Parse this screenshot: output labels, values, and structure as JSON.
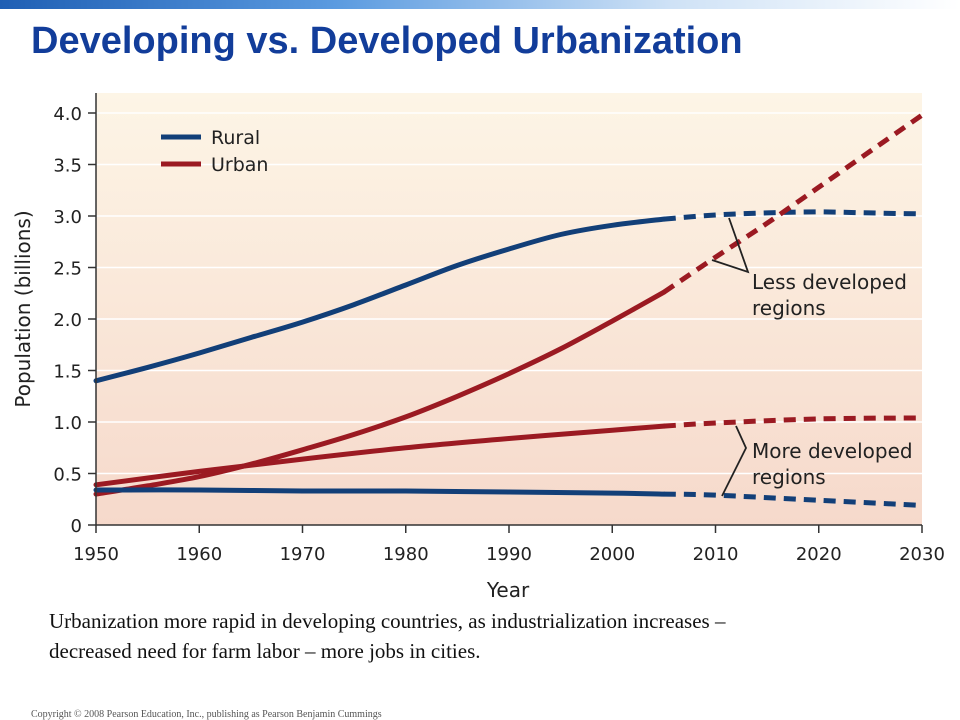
{
  "slide": {
    "title": "Developing vs. Developed Urbanization",
    "caption_line1": "Urbanization more rapid in developing countries, as industrialization increases –",
    "caption_line2": "decreased need for farm labor – more jobs in cities.",
    "copyright": "Copyright © 2008 Pearson Education, Inc., publishing as Pearson Benjamin Cummings"
  },
  "chart_data": {
    "type": "line",
    "xlabel": "Year",
    "ylabel": "Population (billions)",
    "xlim": [
      1950,
      2030
    ],
    "ylim": [
      0,
      4.0
    ],
    "x_ticks": [
      1950,
      1960,
      1970,
      1980,
      1990,
      2000,
      2010,
      2020,
      2030
    ],
    "y_ticks": [
      "0",
      "0.5",
      "1.0",
      "1.5",
      "2.0",
      "2.5",
      "3.0",
      "3.5",
      "4.0"
    ],
    "projection_start": 2005,
    "legend": [
      {
        "label": "Rural",
        "color": "#123f78"
      },
      {
        "label": "Urban",
        "color": "#9b1a22"
      }
    ],
    "annotations": [
      {
        "lines": [
          "Less developed",
          "regions"
        ]
      },
      {
        "lines": [
          "More developed",
          "regions"
        ]
      }
    ],
    "series": [
      {
        "group": "Less developed regions",
        "kind": "Rural",
        "color": "#123f78",
        "x": [
          1950,
          1955,
          1960,
          1965,
          1970,
          1975,
          1980,
          1985,
          1990,
          1995,
          2000,
          2005,
          2010,
          2015,
          2020,
          2025,
          2030
        ],
        "y": [
          1.4,
          1.53,
          1.67,
          1.82,
          1.97,
          2.14,
          2.33,
          2.52,
          2.68,
          2.82,
          2.91,
          2.97,
          3.01,
          3.03,
          3.04,
          3.03,
          3.02
        ]
      },
      {
        "group": "Less developed regions",
        "kind": "Urban",
        "color": "#9b1a22",
        "x": [
          1950,
          1955,
          1960,
          1965,
          1970,
          1975,
          1980,
          1985,
          1990,
          1995,
          2000,
          2005,
          2010,
          2015,
          2020,
          2025,
          2030
        ],
        "y": [
          0.3,
          0.38,
          0.47,
          0.59,
          0.73,
          0.88,
          1.05,
          1.25,
          1.47,
          1.71,
          1.98,
          2.26,
          2.6,
          2.93,
          3.28,
          3.63,
          3.98
        ]
      },
      {
        "group": "More developed regions",
        "kind": "Urban",
        "color": "#9b1a22",
        "x": [
          1950,
          1960,
          1970,
          1980,
          1990,
          2000,
          2005,
          2010,
          2020,
          2030
        ],
        "y": [
          0.39,
          0.52,
          0.64,
          0.75,
          0.84,
          0.92,
          0.96,
          0.99,
          1.03,
          1.04
        ]
      },
      {
        "group": "More developed regions",
        "kind": "Rural",
        "color": "#123f78",
        "x": [
          1950,
          1960,
          1970,
          1980,
          1990,
          2000,
          2005,
          2010,
          2020,
          2030
        ],
        "y": [
          0.34,
          0.34,
          0.33,
          0.33,
          0.32,
          0.31,
          0.3,
          0.29,
          0.24,
          0.19
        ]
      }
    ]
  }
}
